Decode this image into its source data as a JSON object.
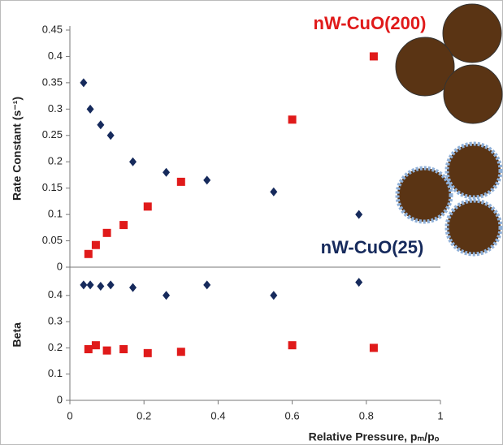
{
  "chart_data": [
    {
      "type": "scatter",
      "ylabel": "Rate Constant (s⁻¹)",
      "xlim": [
        0,
        1
      ],
      "ylim": [
        0,
        0.45
      ],
      "yticks": [
        0,
        0.05,
        0.1,
        0.15,
        0.2,
        0.25,
        0.3,
        0.35,
        0.4,
        0.45
      ],
      "series": [
        {
          "name": "nW-CuO(25)",
          "color": "#162a5c",
          "marker": "diamond",
          "x": [
            0.037,
            0.055,
            0.083,
            0.11,
            0.17,
            0.26,
            0.37,
            0.55,
            0.78
          ],
          "values": [
            0.35,
            0.3,
            0.27,
            0.25,
            0.2,
            0.18,
            0.165,
            0.143,
            0.1
          ]
        },
        {
          "name": "nW-CuO(200)",
          "color": "#e01a1a",
          "marker": "square",
          "x": [
            0.05,
            0.07,
            0.1,
            0.145,
            0.21,
            0.3,
            0.6,
            0.82
          ],
          "values": [
            0.025,
            0.042,
            0.065,
            0.08,
            0.115,
            0.162,
            0.28,
            0.4
          ]
        }
      ]
    },
    {
      "type": "scatter",
      "ylabel": "Beta",
      "xlabel": "Relative Pressure, pₘ/pₒ",
      "xlim": [
        0,
        1
      ],
      "xticks": [
        0,
        0.2,
        0.4,
        0.6,
        0.8,
        1
      ],
      "ylim": [
        0,
        0.5
      ],
      "yticks": [
        0,
        0.1,
        0.2,
        0.3,
        0.4
      ],
      "series": [
        {
          "name": "nW-CuO(25)",
          "color": "#162a5c",
          "marker": "diamond",
          "x": [
            0.037,
            0.055,
            0.083,
            0.11,
            0.17,
            0.26,
            0.37,
            0.55,
            0.78
          ],
          "values": [
            0.44,
            0.44,
            0.435,
            0.44,
            0.43,
            0.4,
            0.44,
            0.4,
            0.45
          ]
        },
        {
          "name": "nW-CuO(200)",
          "color": "#e01a1a",
          "marker": "square",
          "x": [
            0.05,
            0.07,
            0.1,
            0.145,
            0.21,
            0.3,
            0.6,
            0.82
          ],
          "values": [
            0.195,
            0.21,
            0.19,
            0.195,
            0.18,
            0.185,
            0.21,
            0.2
          ]
        }
      ]
    }
  ]
}
